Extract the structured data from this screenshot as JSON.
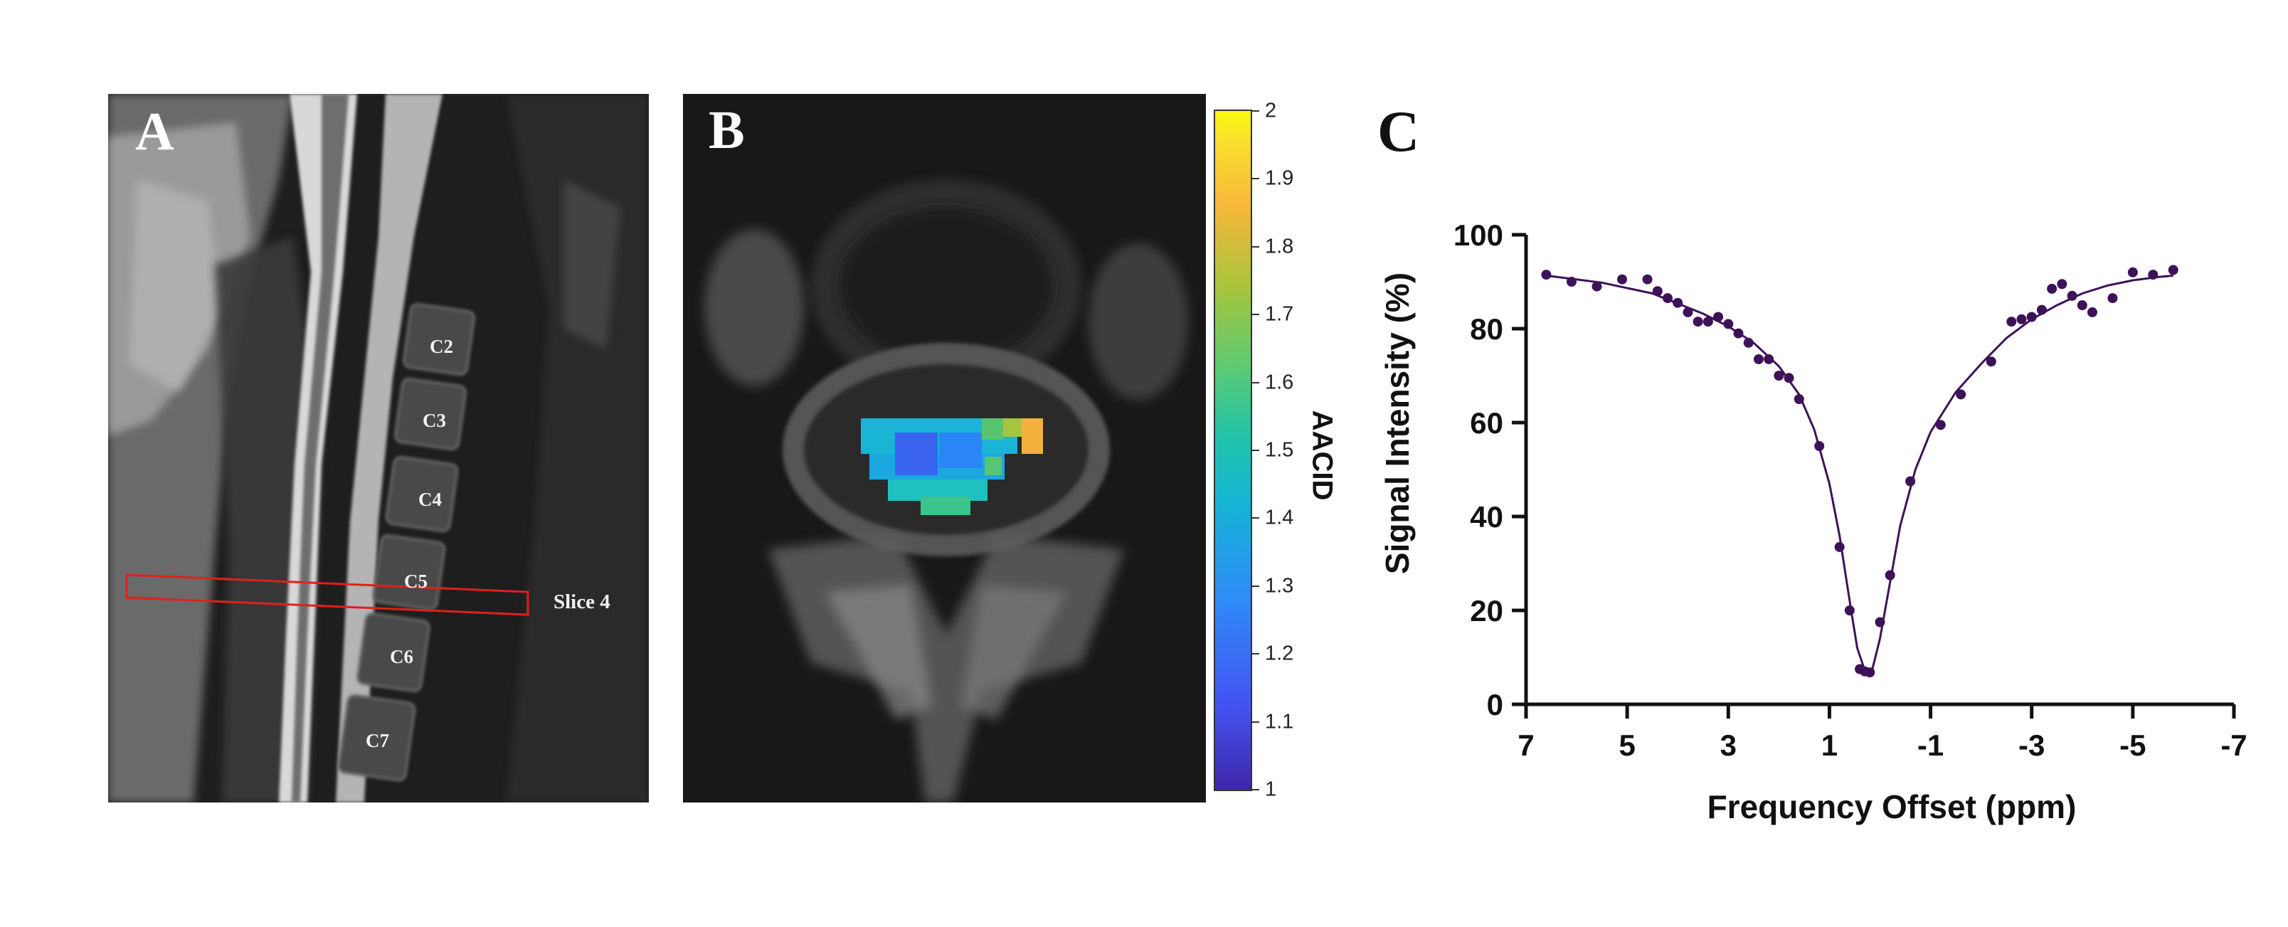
{
  "panel_a": {
    "letter": "A",
    "vertebrae": [
      "C2",
      "C3",
      "C4",
      "C5",
      "C6",
      "C7"
    ],
    "slice_label": "Slice 4",
    "box_color": "#e0201c"
  },
  "panel_b": {
    "letter": "B"
  },
  "colorbar": {
    "title": "AACID",
    "ticks": [
      "2",
      "1.9",
      "1.8",
      "1.7",
      "1.6",
      "1.5",
      "1.4",
      "1.3",
      "1.2",
      "1.1",
      "1"
    ]
  },
  "panel_c": {
    "letter": "C"
  },
  "chart_data": {
    "type": "scatter",
    "xlabel": "Frequency Offset (ppm)",
    "ylabel": "Signal Intensity (%)",
    "xlim": [
      7,
      -7
    ],
    "ylim": [
      0,
      100
    ],
    "xticks": [
      "7",
      "5",
      "3",
      "1",
      "-1",
      "-3",
      "-5",
      "-7"
    ],
    "yticks": [
      "0",
      "20",
      "40",
      "60",
      "80",
      "100"
    ],
    "marker_color": "#3d1259",
    "points": [
      [
        6.6,
        91.5
      ],
      [
        6.1,
        90
      ],
      [
        5.6,
        89
      ],
      [
        5.1,
        90.5
      ],
      [
        4.6,
        90.5
      ],
      [
        4.4,
        88
      ],
      [
        4.2,
        86.5
      ],
      [
        4.0,
        85.5
      ],
      [
        3.8,
        83.5
      ],
      [
        3.6,
        81.5
      ],
      [
        3.4,
        81.5
      ],
      [
        3.2,
        82.5
      ],
      [
        3.0,
        81
      ],
      [
        2.8,
        79
      ],
      [
        2.6,
        77
      ],
      [
        2.4,
        73.5
      ],
      [
        2.2,
        73.5
      ],
      [
        2.0,
        70
      ],
      [
        1.8,
        69.5
      ],
      [
        1.6,
        65
      ],
      [
        1.2,
        55
      ],
      [
        0.8,
        33.5
      ],
      [
        0.6,
        20
      ],
      [
        0.4,
        7.5
      ],
      [
        0.3,
        7
      ],
      [
        0.2,
        6.8
      ],
      [
        0.0,
        17.5
      ],
      [
        -0.2,
        27.5
      ],
      [
        -0.6,
        47.5
      ],
      [
        -1.2,
        59.5
      ],
      [
        -1.6,
        66
      ],
      [
        -2.2,
        73
      ],
      [
        -2.6,
        81.5
      ],
      [
        -2.8,
        82
      ],
      [
        -3.0,
        82.5
      ],
      [
        -3.2,
        84
      ],
      [
        -3.4,
        88.5
      ],
      [
        -3.6,
        89.5
      ],
      [
        -3.8,
        87
      ],
      [
        -4.0,
        85
      ],
      [
        -4.2,
        83.5
      ],
      [
        -4.6,
        86.5
      ],
      [
        -5.0,
        92
      ],
      [
        -5.4,
        91.5
      ],
      [
        -5.8,
        92.5
      ]
    ],
    "fit_curve": [
      [
        6.6,
        91.3
      ],
      [
        5.5,
        89.8
      ],
      [
        4.5,
        87.5
      ],
      [
        3.5,
        83.2
      ],
      [
        3.0,
        80.5
      ],
      [
        2.5,
        77
      ],
      [
        2.0,
        72
      ],
      [
        1.6,
        66
      ],
      [
        1.3,
        58.5
      ],
      [
        1.0,
        47
      ],
      [
        0.8,
        36
      ],
      [
        0.6,
        22
      ],
      [
        0.45,
        12
      ],
      [
        0.3,
        7.2
      ],
      [
        0.15,
        7.5
      ],
      [
        0.0,
        14
      ],
      [
        -0.2,
        26
      ],
      [
        -0.4,
        38
      ],
      [
        -0.7,
        50
      ],
      [
        -1.0,
        58
      ],
      [
        -1.5,
        66.5
      ],
      [
        -2.0,
        72.5
      ],
      [
        -2.5,
        78
      ],
      [
        -3.0,
        82
      ],
      [
        -3.5,
        85
      ],
      [
        -4.0,
        87.5
      ],
      [
        -4.5,
        89.2
      ],
      [
        -5.0,
        90.3
      ],
      [
        -5.5,
        91
      ],
      [
        -5.8,
        91.3
      ]
    ]
  }
}
